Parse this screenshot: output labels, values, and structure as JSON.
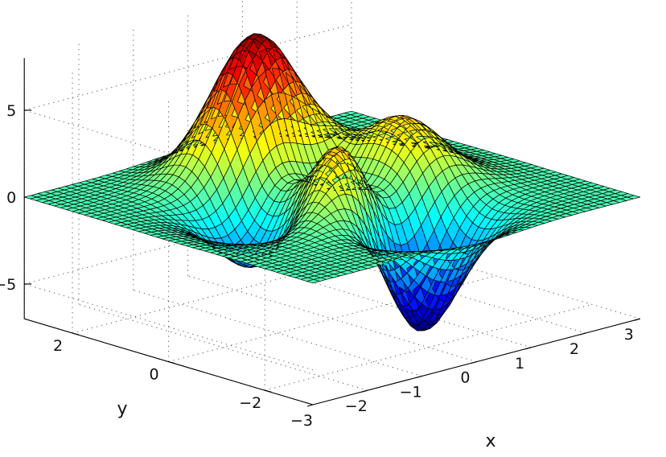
{
  "chart_data": {
    "type": "surface",
    "function": "peaks",
    "title": "",
    "xlabel": "x",
    "ylabel": "y",
    "zlabel": "",
    "xlim": [
      -3,
      3
    ],
    "ylim": [
      -3,
      3
    ],
    "zlim": [
      -7,
      8
    ],
    "xticks": [
      -3,
      -2,
      -1,
      0,
      1,
      2,
      3
    ],
    "xtick_labels": [
      "−3",
      "−2",
      "−1",
      "0",
      "1",
      "2",
      "3"
    ],
    "yticks": [
      -2,
      0,
      2
    ],
    "ytick_labels": [
      "−2",
      "0",
      "2"
    ],
    "zticks": [
      -5,
      0,
      5
    ],
    "ztick_labels": [
      "−5",
      "0",
      "5"
    ],
    "grid": true,
    "mesh_resolution": 49,
    "colormap": "jet",
    "edge_color": "#000000",
    "features": [
      {
        "kind": "max",
        "x": 0,
        "y": 1.6,
        "z": 8.1
      },
      {
        "kind": "min",
        "x": 0.2,
        "y": -1.6,
        "z": -6.5
      },
      {
        "kind": "local-max",
        "x": -0.5,
        "y": -0.6,
        "z": 3.8
      }
    ]
  }
}
